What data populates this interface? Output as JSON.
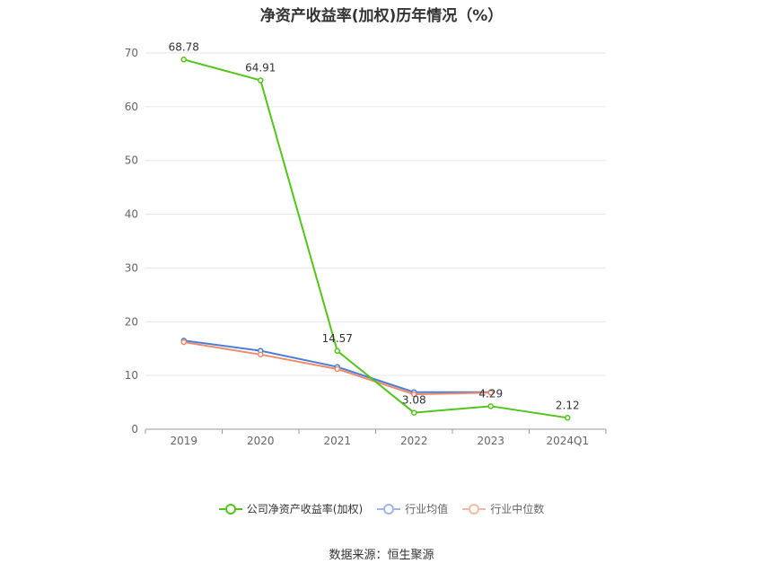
{
  "chart_data": {
    "type": "line",
    "title": "净资产收益率(加权)历年情况（%）",
    "categories": [
      "2019",
      "2020",
      "2021",
      "2022",
      "2023",
      "2024Q1"
    ],
    "ylim": [
      0,
      70
    ],
    "yticks": [
      0,
      10,
      20,
      30,
      40,
      50,
      60,
      70
    ],
    "grid": true,
    "legend_position": "bottom",
    "series": [
      {
        "name": "公司净资产收益率(加权)",
        "color": "#52c41a",
        "values": [
          68.78,
          64.91,
          14.57,
          3.08,
          4.29,
          2.12
        ],
        "labels": [
          "68.78",
          "64.91",
          "14.57",
          "3.08",
          "4.29",
          "2.12"
        ]
      },
      {
        "name": "行业均值",
        "color": "#4a7fd6",
        "values": [
          16.5,
          14.6,
          11.6,
          6.9,
          6.9,
          null
        ]
      },
      {
        "name": "行业中位数",
        "color": "#f08b6a",
        "values": [
          16.2,
          13.9,
          11.2,
          6.5,
          6.8,
          null
        ]
      }
    ]
  },
  "source": "数据来源：恒生聚源"
}
